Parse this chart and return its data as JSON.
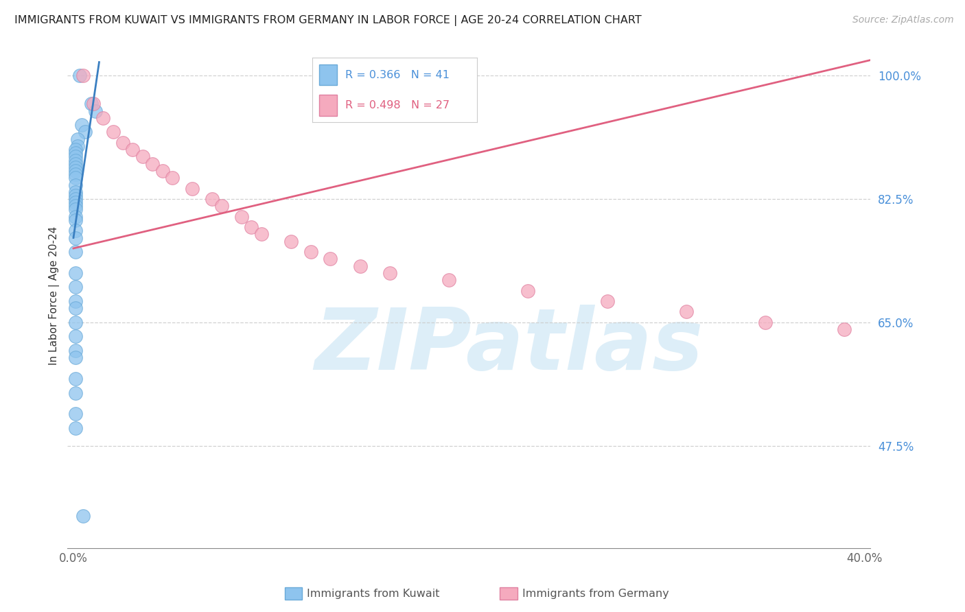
{
  "title": "IMMIGRANTS FROM KUWAIT VS IMMIGRANTS FROM GERMANY IN LABOR FORCE | AGE 20-24 CORRELATION CHART",
  "source": "Source: ZipAtlas.com",
  "ylabel": "In Labor Force | Age 20-24",
  "xlim": [
    -0.003,
    0.403
  ],
  "ylim": [
    0.33,
    1.045
  ],
  "xtick_positions": [
    0.0,
    0.05,
    0.1,
    0.15,
    0.2,
    0.25,
    0.3,
    0.35,
    0.4
  ],
  "xticklabels": [
    "0.0%",
    "",
    "",
    "",
    "",
    "",
    "",
    "",
    "40.0%"
  ],
  "ytick_positions": [
    1.0,
    0.825,
    0.65,
    0.475
  ],
  "ytick_labels": [
    "100.0%",
    "82.5%",
    "65.0%",
    "47.5%"
  ],
  "grid_color": "#cccccc",
  "background_color": "#ffffff",
  "kuwait_color": "#8ec4ee",
  "germany_color": "#f5aabe",
  "kuwait_edge": "#6aaad8",
  "germany_edge": "#e080a0",
  "kuwait_R": 0.366,
  "kuwait_N": 41,
  "germany_R": 0.498,
  "germany_N": 27,
  "legend_label_kuwait": "Immigrants from Kuwait",
  "legend_label_germany": "Immigrants from Germany",
  "kuwait_line_color": "#3a7fc1",
  "germany_line_color": "#e06080",
  "watermark": "ZIPatlas",
  "watermark_color": "#ddeef8",
  "kuwait_x": [
    0.003,
    0.009,
    0.011,
    0.004,
    0.006,
    0.002,
    0.002,
    0.001,
    0.001,
    0.001,
    0.001,
    0.001,
    0.001,
    0.001,
    0.001,
    0.001,
    0.001,
    0.001,
    0.001,
    0.001,
    0.001,
    0.001,
    0.001,
    0.001,
    0.001,
    0.001,
    0.001,
    0.001,
    0.001,
    0.001,
    0.001,
    0.001,
    0.001,
    0.001,
    0.001,
    0.001,
    0.001,
    0.001,
    0.001,
    0.001,
    0.005
  ],
  "kuwait_y": [
    1.0,
    0.96,
    0.95,
    0.93,
    0.92,
    0.91,
    0.9,
    0.895,
    0.89,
    0.885,
    0.88,
    0.875,
    0.87,
    0.865,
    0.86,
    0.855,
    0.845,
    0.835,
    0.83,
    0.825,
    0.82,
    0.815,
    0.81,
    0.8,
    0.795,
    0.78,
    0.77,
    0.75,
    0.72,
    0.7,
    0.68,
    0.67,
    0.65,
    0.63,
    0.61,
    0.6,
    0.57,
    0.55,
    0.52,
    0.5,
    0.375
  ],
  "germany_x": [
    0.005,
    0.01,
    0.015,
    0.02,
    0.025,
    0.03,
    0.035,
    0.04,
    0.045,
    0.05,
    0.06,
    0.07,
    0.075,
    0.085,
    0.09,
    0.095,
    0.11,
    0.12,
    0.13,
    0.145,
    0.16,
    0.19,
    0.23,
    0.27,
    0.31,
    0.35,
    0.39
  ],
  "germany_y": [
    1.0,
    0.96,
    0.94,
    0.92,
    0.905,
    0.895,
    0.885,
    0.875,
    0.865,
    0.855,
    0.84,
    0.825,
    0.815,
    0.8,
    0.785,
    0.775,
    0.765,
    0.75,
    0.74,
    0.73,
    0.72,
    0.71,
    0.695,
    0.68,
    0.665,
    0.65,
    0.64
  ]
}
